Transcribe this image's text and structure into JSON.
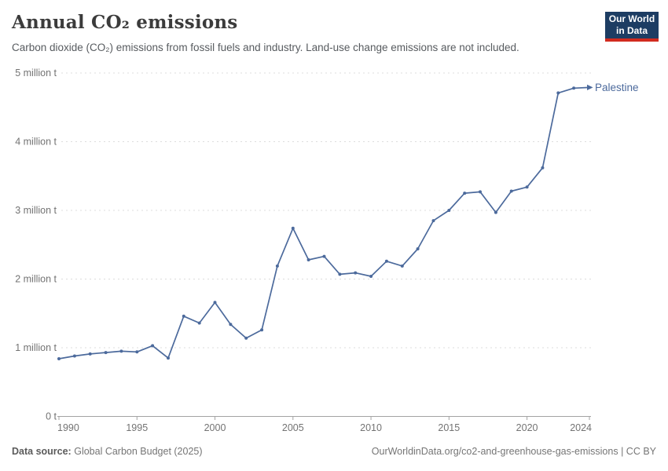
{
  "header": {
    "title": "Annual CO₂ emissions",
    "subtitle": "Carbon dioxide (CO₂) emissions from fossil fuels and industry. Land-use change emissions are not included.",
    "logo": {
      "line1": "Our World",
      "line2": "in Data"
    }
  },
  "chart_data": {
    "type": "line",
    "title": "Annual CO₂ emissions",
    "xlabel": "",
    "ylabel": "",
    "xlim": [
      1990,
      2024
    ],
    "ylim": [
      0,
      5
    ],
    "grid": "horizontal-dashed",
    "legend_position": "end-of-line-label",
    "x_ticks": [
      1990,
      1995,
      2000,
      2005,
      2010,
      2015,
      2020,
      2024
    ],
    "y_ticks": [
      {
        "value": 0,
        "label": "0 t"
      },
      {
        "value": 1,
        "label": "1 million t"
      },
      {
        "value": 2,
        "label": "2 million t"
      },
      {
        "value": 3,
        "label": "3 million t"
      },
      {
        "value": 4,
        "label": "4 million t"
      },
      {
        "value": 5,
        "label": "5 million t"
      }
    ],
    "unit": "million t",
    "series": [
      {
        "name": "Palestine",
        "color": "#4C6A9C",
        "x": [
          1990,
          1991,
          1992,
          1993,
          1994,
          1995,
          1996,
          1997,
          1998,
          1999,
          2000,
          2001,
          2002,
          2003,
          2004,
          2005,
          2006,
          2007,
          2008,
          2009,
          2010,
          2011,
          2012,
          2013,
          2014,
          2015,
          2016,
          2017,
          2018,
          2019,
          2020,
          2021,
          2022,
          2023,
          2024
        ],
        "values": [
          0.84,
          0.88,
          0.91,
          0.93,
          0.95,
          0.94,
          1.03,
          0.85,
          1.46,
          1.36,
          1.66,
          1.34,
          1.14,
          1.26,
          2.19,
          2.74,
          2.28,
          2.33,
          2.07,
          2.09,
          2.04,
          2.26,
          2.19,
          2.44,
          2.85,
          3.0,
          3.25,
          3.27,
          2.97,
          3.28,
          3.34,
          3.62,
          4.71,
          4.78,
          4.79
        ]
      }
    ]
  },
  "footer": {
    "source_label": "Data source:",
    "source_value": "Global Carbon Budget (2025)",
    "link": "OurWorldinData.org/co2-and-greenhouse-gas-emissions",
    "separator": "|",
    "license": "CC BY"
  }
}
